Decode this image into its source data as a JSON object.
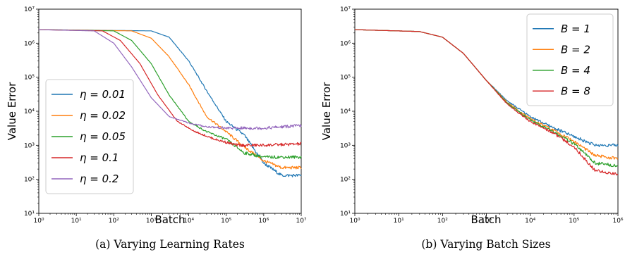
{
  "charts": [
    {
      "caption": "(a)  Varying Learning Rates",
      "chart_data": {
        "type": "line",
        "xlabel": "Batch",
        "ylabel": "Value Error",
        "xscale": "log",
        "yscale": "log",
        "xlim": [
          1,
          10000000
        ],
        "ylim": [
          10,
          10000000
        ],
        "x_ticks": [
          "10⁰",
          "10¹",
          "10²",
          "10³",
          "10⁴",
          "10⁵",
          "10⁶",
          "10⁷"
        ],
        "y_ticks": [
          "10¹",
          "10²",
          "10³",
          "10⁴",
          "10⁵",
          "10⁶",
          "10⁷"
        ],
        "legend_position": "lower-left",
        "series": [
          {
            "name": "η = 0.01",
            "color": "#1f77b4",
            "x": [
              1,
              1000,
              3000,
              10000,
              30000,
              100000,
              300000,
              1000000,
              3000000,
              10000000
            ],
            "y": [
              2500000,
              2300000,
              1500000,
              300000,
              40000,
              5000,
              2000,
              300,
              130,
              130
            ]
          },
          {
            "name": "η = 0.02",
            "color": "#ff7f0e",
            "x": [
              1,
              300,
              1000,
              3000,
              10000,
              30000,
              100000,
              300000,
              1000000,
              3000000,
              10000000
            ],
            "y": [
              2500000,
              2300000,
              1400000,
              400000,
              60000,
              7000,
              2500,
              900,
              350,
              220,
              220
            ]
          },
          {
            "name": "η = 0.05",
            "color": "#2ca02c",
            "x": [
              1,
              100,
              300,
              1000,
              3000,
              10000,
              30000,
              100000,
              300000,
              1000000,
              10000000
            ],
            "y": [
              2500000,
              2300000,
              1200000,
              250000,
              30000,
              5000,
              2500,
              1500,
              600,
              450,
              450
            ]
          },
          {
            "name": "η = 0.1",
            "color": "#d62728",
            "x": [
              1,
              50,
              150,
              500,
              1500,
              5000,
              15000,
              50000,
              200000,
              1000000,
              10000000
            ],
            "y": [
              2500000,
              2300000,
              1200000,
              250000,
              30000,
              5000,
              2500,
              1500,
              1000,
              1000,
              1100
            ]
          },
          {
            "name": "η = 0.2",
            "color": "#9467bd",
            "x": [
              1,
              30,
              100,
              300,
              1000,
              3000,
              10000,
              30000,
              100000,
              1000000,
              10000000
            ],
            "y": [
              2500000,
              2300000,
              1000000,
              200000,
              25000,
              7000,
              4500,
              3500,
              3200,
              3200,
              3800
            ]
          }
        ]
      }
    },
    {
      "caption": "(b)  Varying Batch Sizes",
      "chart_data": {
        "type": "line",
        "xlabel": "Batch",
        "ylabel": "Value Error",
        "xscale": "log",
        "yscale": "log",
        "xlim": [
          1,
          1000000
        ],
        "ylim": [
          10,
          10000000
        ],
        "x_ticks": [
          "10⁰",
          "10¹",
          "10²",
          "10³",
          "10⁴",
          "10⁵",
          "10⁶"
        ],
        "y_ticks": [
          "10¹",
          "10²",
          "10³",
          "10⁴",
          "10⁵",
          "10⁶",
          "10⁷"
        ],
        "legend_position": "upper-right",
        "series": [
          {
            "name": "B = 1",
            "color": "#1f77b4",
            "x": [
              1,
              30,
              100,
              300,
              1000,
              3000,
              10000,
              30000,
              100000,
              300000,
              1000000
            ],
            "y": [
              2500000,
              2200000,
              1500000,
              500000,
              80000,
              20000,
              7000,
              3500,
              1800,
              1000,
              1000
            ]
          },
          {
            "name": "B = 2",
            "color": "#ff7f0e",
            "x": [
              1,
              30,
              100,
              300,
              1000,
              3000,
              10000,
              30000,
              100000,
              300000,
              1000000
            ],
            "y": [
              2500000,
              2200000,
              1500000,
              500000,
              80000,
              18000,
              6000,
              3000,
              1300,
              500,
              400
            ]
          },
          {
            "name": "B = 4",
            "color": "#2ca02c",
            "x": [
              1,
              30,
              100,
              300,
              1000,
              3000,
              10000,
              30000,
              100000,
              300000,
              1000000
            ],
            "y": [
              2500000,
              2200000,
              1500000,
              500000,
              80000,
              17000,
              5500,
              2700,
              1100,
              300,
              250
            ]
          },
          {
            "name": "B = 8",
            "color": "#d62728",
            "x": [
              1,
              30,
              100,
              300,
              1000,
              3000,
              10000,
              30000,
              100000,
              300000,
              1000000
            ],
            "y": [
              2500000,
              2200000,
              1500000,
              500000,
              80000,
              16000,
              5000,
              2500,
              900,
              180,
              140
            ]
          }
        ]
      }
    }
  ]
}
